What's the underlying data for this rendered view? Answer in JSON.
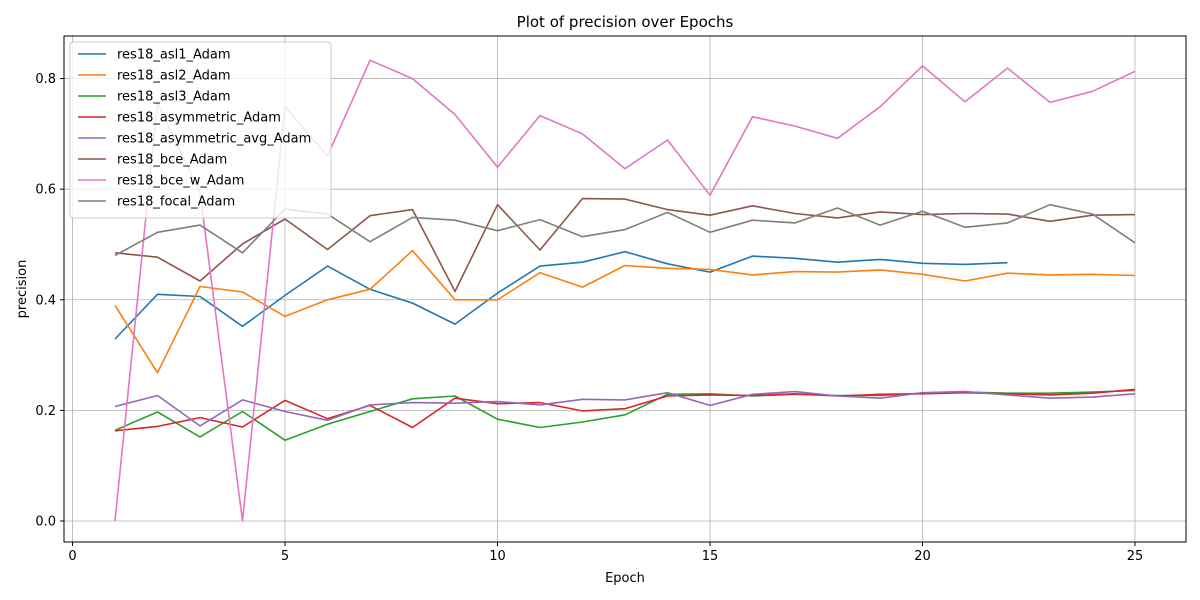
{
  "chart_data": {
    "type": "line",
    "title": "Plot of precision over Epochs",
    "xlabel": "Epoch",
    "ylabel": "precision",
    "xlim": [
      -0.2,
      26.2
    ],
    "ylim": [
      -0.038,
      0.877
    ],
    "xticks": [
      0,
      5,
      10,
      15,
      20,
      25
    ],
    "xtick_labels": [
      "0",
      "5",
      "10",
      "15",
      "20",
      "25"
    ],
    "yticks": [
      0.0,
      0.2,
      0.4,
      0.6,
      0.8
    ],
    "ytick_labels": [
      "0.0",
      "0.2",
      "0.4",
      "0.6",
      "0.8"
    ],
    "grid": true,
    "legend_position": "upper-left",
    "series": [
      {
        "name": "res18_asl1_Adam",
        "color": "#1f77b4",
        "x": [
          1,
          2,
          3,
          4,
          5,
          6,
          7,
          8,
          9,
          10,
          11,
          12,
          13,
          14,
          15,
          16,
          17,
          18,
          19,
          20,
          21,
          22
        ],
        "values": [
          0.329,
          0.41,
          0.406,
          0.352,
          0.408,
          0.461,
          0.419,
          0.394,
          0.356,
          0.412,
          0.461,
          0.468,
          0.487,
          0.465,
          0.45,
          0.479,
          0.475,
          0.468,
          0.473,
          0.466,
          0.464,
          0.467
        ]
      },
      {
        "name": "res18_asl2_Adam",
        "color": "#ff7f0e",
        "x": [
          1,
          2,
          3,
          4,
          5,
          6,
          7,
          8,
          9,
          10,
          11,
          12,
          13,
          14,
          15,
          16,
          17,
          18,
          19,
          20,
          21,
          22,
          23,
          24,
          25
        ],
        "values": [
          0.39,
          0.268,
          0.424,
          0.414,
          0.37,
          0.4,
          0.419,
          0.489,
          0.4,
          0.4,
          0.449,
          0.423,
          0.462,
          0.457,
          0.455,
          0.445,
          0.451,
          0.45,
          0.454,
          0.446,
          0.434,
          0.448,
          0.445,
          0.446,
          0.444
        ]
      },
      {
        "name": "res18_asl3_Adam",
        "color": "#2ca02c",
        "x": [
          1,
          2,
          3,
          4,
          5,
          6,
          7,
          8,
          9,
          10,
          11,
          12,
          13,
          14,
          15,
          16,
          17,
          18,
          19,
          20,
          21,
          22,
          23,
          24,
          25
        ],
        "values": [
          0.164,
          0.197,
          0.152,
          0.198,
          0.146,
          0.175,
          0.198,
          0.221,
          0.226,
          0.184,
          0.169,
          0.179,
          0.192,
          0.229,
          0.23,
          0.226,
          0.229,
          0.227,
          0.227,
          0.231,
          0.233,
          0.231,
          0.231,
          0.233,
          0.236
        ]
      },
      {
        "name": "res18_asymmetric_Adam",
        "color": "#d62728",
        "x": [
          1,
          2,
          3,
          4,
          5,
          6,
          7,
          8,
          9,
          10,
          11,
          12,
          13,
          14,
          15,
          16,
          17,
          18,
          19,
          20,
          21,
          22,
          23,
          24,
          25
        ],
        "values": [
          0.163,
          0.171,
          0.187,
          0.17,
          0.218,
          0.185,
          0.209,
          0.169,
          0.222,
          0.212,
          0.214,
          0.199,
          0.203,
          0.226,
          0.228,
          0.227,
          0.23,
          0.226,
          0.229,
          0.23,
          0.232,
          0.23,
          0.228,
          0.231,
          0.238
        ]
      },
      {
        "name": "res18_asymmetric_avg_Adam",
        "color": "#9467bd",
        "x": [
          1,
          2,
          3,
          4,
          5,
          6,
          7,
          8,
          9,
          10,
          11,
          12,
          13,
          14,
          15,
          16,
          17,
          18,
          19,
          20,
          21,
          22,
          23,
          24,
          25
        ],
        "values": [
          0.207,
          0.227,
          0.172,
          0.219,
          0.198,
          0.182,
          0.21,
          0.214,
          0.213,
          0.216,
          0.21,
          0.22,
          0.219,
          0.232,
          0.209,
          0.229,
          0.234,
          0.226,
          0.222,
          0.232,
          0.234,
          0.228,
          0.222,
          0.224,
          0.23
        ]
      },
      {
        "name": "res18_bce_Adam",
        "color": "#8c564b",
        "x": [
          1,
          2,
          3,
          4,
          5,
          6,
          7,
          8,
          9,
          10,
          11,
          12,
          13,
          14,
          15,
          16,
          17,
          18,
          19,
          20,
          21,
          22,
          23,
          24,
          25
        ],
        "values": [
          0.485,
          0.477,
          0.434,
          0.501,
          0.546,
          0.491,
          0.552,
          0.563,
          0.415,
          0.572,
          0.49,
          0.583,
          0.582,
          0.563,
          0.553,
          0.57,
          0.556,
          0.548,
          0.559,
          0.554,
          0.556,
          0.555,
          0.542,
          0.553,
          0.554
        ]
      },
      {
        "name": "res18_bce_w_Adam",
        "color": "#e377c2",
        "x": [
          1,
          2,
          3,
          4,
          5,
          6,
          7,
          8,
          9,
          10,
          11,
          12,
          13,
          14,
          15,
          16,
          17,
          18,
          19,
          20,
          21,
          22,
          23,
          24,
          25
        ],
        "values": [
          0.0,
          0.756,
          0.594,
          0.0,
          0.749,
          0.66,
          0.833,
          0.8,
          0.735,
          0.64,
          0.733,
          0.7,
          0.637,
          0.689,
          0.589,
          0.731,
          0.714,
          0.692,
          0.749,
          0.823,
          0.758,
          0.819,
          0.757,
          0.777,
          0.813
        ]
      },
      {
        "name": "res18_focal_Adam",
        "color": "#7f7f7f",
        "x": [
          1,
          2,
          3,
          4,
          5,
          6,
          7,
          8,
          9,
          10,
          11,
          12,
          13,
          14,
          15,
          16,
          17,
          18,
          19,
          20,
          21,
          22,
          23,
          24,
          25
        ],
        "values": [
          0.48,
          0.522,
          0.535,
          0.485,
          0.564,
          0.555,
          0.505,
          0.549,
          0.544,
          0.525,
          0.545,
          0.514,
          0.527,
          0.558,
          0.522,
          0.544,
          0.539,
          0.566,
          0.535,
          0.56,
          0.531,
          0.539,
          0.572,
          0.555,
          0.503
        ]
      }
    ]
  }
}
